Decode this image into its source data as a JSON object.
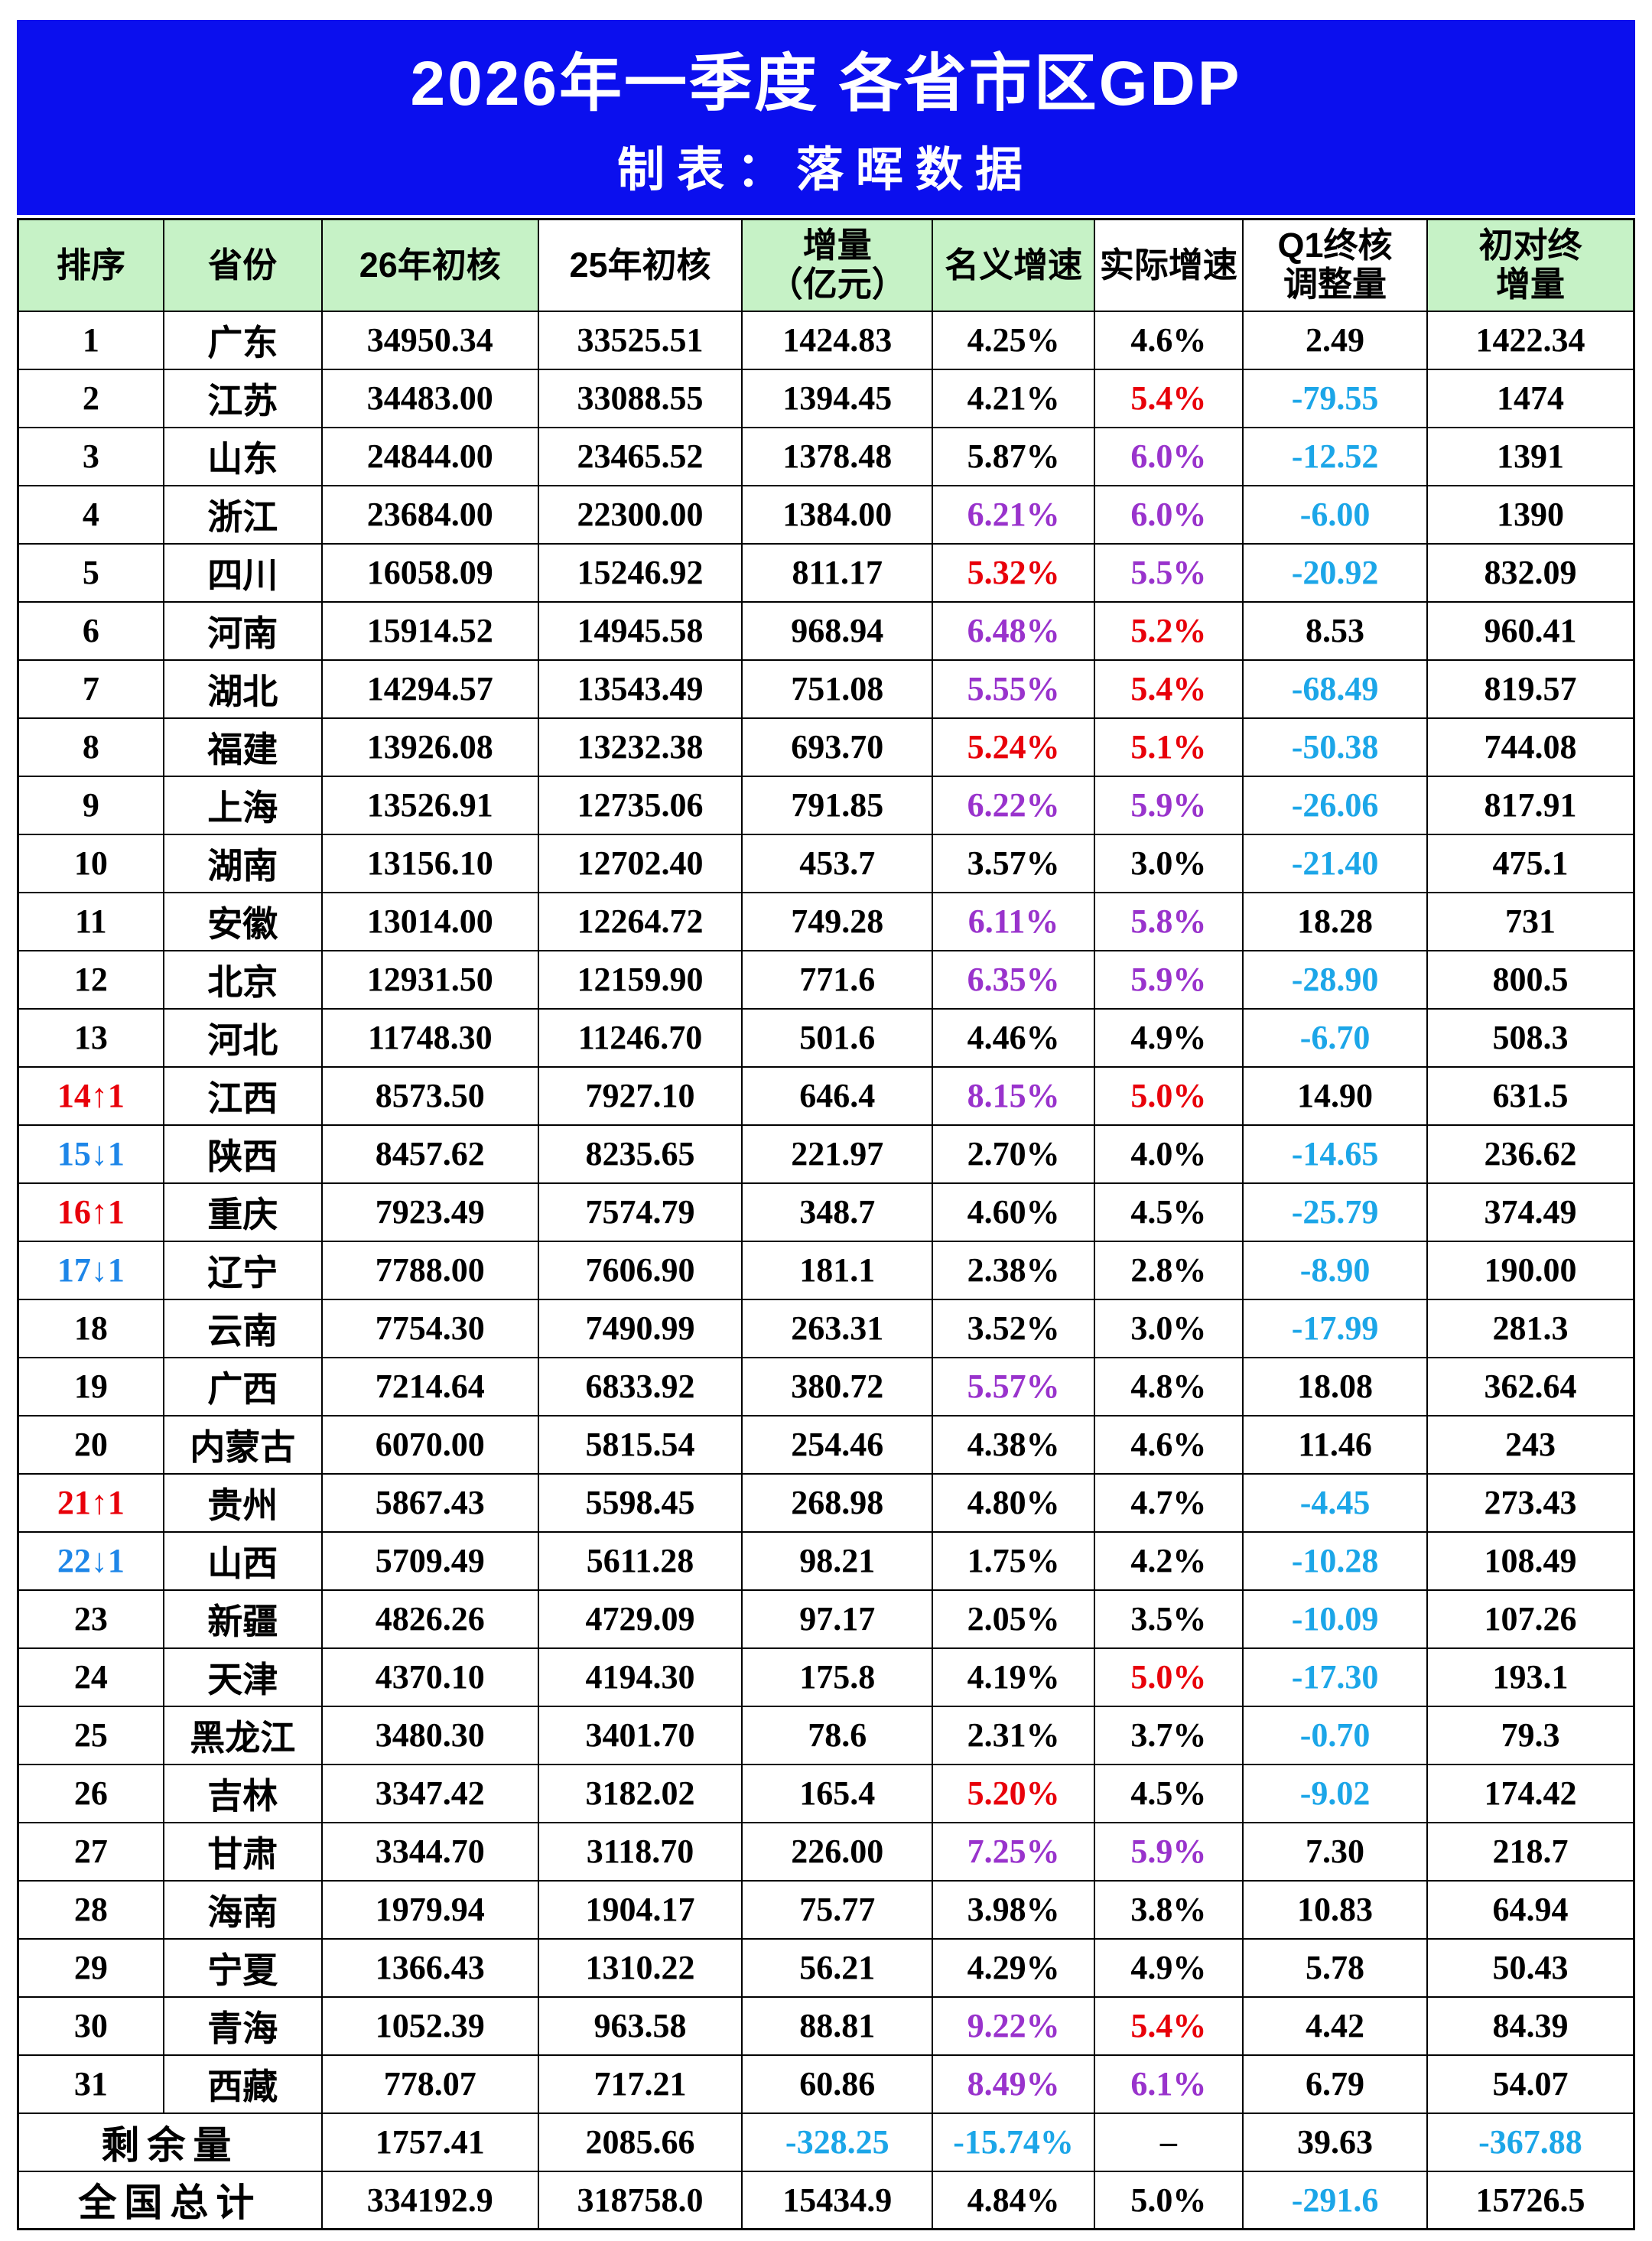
{
  "title": "2026年一季度 各省市区GDP",
  "subtitle": "制表：落晖数据",
  "colors": {
    "title_bg": "#0b0fee",
    "header_green": "#c6f2c6",
    "red": "#e8000a",
    "purple": "#9933cc",
    "cyan": "#1ca6e8",
    "blue": "#1e86e8"
  },
  "chart_data": {
    "type": "table",
    "columns": [
      {
        "label": "排序",
        "bg": "g"
      },
      {
        "label": "省份",
        "bg": "g"
      },
      {
        "label": "26年初核",
        "bg": "g"
      },
      {
        "label": "25年初核",
        "bg": "w"
      },
      {
        "label": "增量\n（亿元）",
        "bg": "g"
      },
      {
        "label": "名义增速",
        "bg": "g"
      },
      {
        "label": "实际增速",
        "bg": "w"
      },
      {
        "label": "Q1终核\n调整量",
        "bg": "w"
      },
      {
        "label": "初对终\n增量",
        "bg": "g"
      }
    ],
    "rows": [
      {
        "rank": "1",
        "rank_c": "",
        "province": "广东",
        "vals": [
          [
            "34950.34",
            ""
          ],
          [
            "33525.51",
            ""
          ],
          [
            "1424.83",
            ""
          ],
          [
            "4.25%",
            ""
          ],
          [
            "4.6%",
            ""
          ],
          [
            "2.49",
            ""
          ],
          [
            "1422.34",
            ""
          ]
        ]
      },
      {
        "rank": "2",
        "rank_c": "",
        "province": "江苏",
        "vals": [
          [
            "34483.00",
            ""
          ],
          [
            "33088.55",
            ""
          ],
          [
            "1394.45",
            ""
          ],
          [
            "4.21%",
            ""
          ],
          [
            "5.4%",
            "r"
          ],
          [
            "-79.55",
            "c"
          ],
          [
            "1474",
            ""
          ]
        ]
      },
      {
        "rank": "3",
        "rank_c": "",
        "province": "山东",
        "vals": [
          [
            "24844.00",
            ""
          ],
          [
            "23465.52",
            ""
          ],
          [
            "1378.48",
            ""
          ],
          [
            "5.87%",
            ""
          ],
          [
            "6.0%",
            "p"
          ],
          [
            "-12.52",
            "c"
          ],
          [
            "1391",
            ""
          ]
        ]
      },
      {
        "rank": "4",
        "rank_c": "",
        "province": "浙江",
        "vals": [
          [
            "23684.00",
            ""
          ],
          [
            "22300.00",
            ""
          ],
          [
            "1384.00",
            ""
          ],
          [
            "6.21%",
            "p"
          ],
          [
            "6.0%",
            "p"
          ],
          [
            "-6.00",
            "c"
          ],
          [
            "1390",
            ""
          ]
        ]
      },
      {
        "rank": "5",
        "rank_c": "",
        "province": "四川",
        "vals": [
          [
            "16058.09",
            ""
          ],
          [
            "15246.92",
            ""
          ],
          [
            "811.17",
            ""
          ],
          [
            "5.32%",
            "r"
          ],
          [
            "5.5%",
            "p"
          ],
          [
            "-20.92",
            "c"
          ],
          [
            "832.09",
            ""
          ]
        ]
      },
      {
        "rank": "6",
        "rank_c": "",
        "province": "河南",
        "vals": [
          [
            "15914.52",
            ""
          ],
          [
            "14945.58",
            ""
          ],
          [
            "968.94",
            ""
          ],
          [
            "6.48%",
            "p"
          ],
          [
            "5.2%",
            "r"
          ],
          [
            "8.53",
            ""
          ],
          [
            "960.41",
            ""
          ]
        ]
      },
      {
        "rank": "7",
        "rank_c": "",
        "province": "湖北",
        "vals": [
          [
            "14294.57",
            ""
          ],
          [
            "13543.49",
            ""
          ],
          [
            "751.08",
            ""
          ],
          [
            "5.55%",
            "p"
          ],
          [
            "5.4%",
            "r"
          ],
          [
            "-68.49",
            "c"
          ],
          [
            "819.57",
            ""
          ]
        ]
      },
      {
        "rank": "8",
        "rank_c": "",
        "province": "福建",
        "vals": [
          [
            "13926.08",
            ""
          ],
          [
            "13232.38",
            ""
          ],
          [
            "693.70",
            ""
          ],
          [
            "5.24%",
            "r"
          ],
          [
            "5.1%",
            "r"
          ],
          [
            "-50.38",
            "c"
          ],
          [
            "744.08",
            ""
          ]
        ]
      },
      {
        "rank": "9",
        "rank_c": "",
        "province": "上海",
        "vals": [
          [
            "13526.91",
            ""
          ],
          [
            "12735.06",
            ""
          ],
          [
            "791.85",
            ""
          ],
          [
            "6.22%",
            "p"
          ],
          [
            "5.9%",
            "p"
          ],
          [
            "-26.06",
            "c"
          ],
          [
            "817.91",
            ""
          ]
        ]
      },
      {
        "rank": "10",
        "rank_c": "",
        "province": "湖南",
        "vals": [
          [
            "13156.10",
            ""
          ],
          [
            "12702.40",
            ""
          ],
          [
            "453.7",
            ""
          ],
          [
            "3.57%",
            ""
          ],
          [
            "3.0%",
            ""
          ],
          [
            "-21.40",
            "c"
          ],
          [
            "475.1",
            ""
          ]
        ]
      },
      {
        "rank": "11",
        "rank_c": "",
        "province": "安徽",
        "vals": [
          [
            "13014.00",
            ""
          ],
          [
            "12264.72",
            ""
          ],
          [
            "749.28",
            ""
          ],
          [
            "6.11%",
            "p"
          ],
          [
            "5.8%",
            "p"
          ],
          [
            "18.28",
            ""
          ],
          [
            "731",
            ""
          ]
        ]
      },
      {
        "rank": "12",
        "rank_c": "",
        "province": "北京",
        "vals": [
          [
            "12931.50",
            ""
          ],
          [
            "12159.90",
            ""
          ],
          [
            "771.6",
            ""
          ],
          [
            "6.35%",
            "p"
          ],
          [
            "5.9%",
            "p"
          ],
          [
            "-28.90",
            "c"
          ],
          [
            "800.5",
            ""
          ]
        ]
      },
      {
        "rank": "13",
        "rank_c": "",
        "province": "河北",
        "vals": [
          [
            "11748.30",
            ""
          ],
          [
            "11246.70",
            ""
          ],
          [
            "501.6",
            ""
          ],
          [
            "4.46%",
            ""
          ],
          [
            "4.9%",
            ""
          ],
          [
            "-6.70",
            "c"
          ],
          [
            "508.3",
            ""
          ]
        ]
      },
      {
        "rank": "14↑1",
        "rank_c": "r",
        "province": "江西",
        "vals": [
          [
            "8573.50",
            ""
          ],
          [
            "7927.10",
            ""
          ],
          [
            "646.4",
            ""
          ],
          [
            "8.15%",
            "p"
          ],
          [
            "5.0%",
            "r"
          ],
          [
            "14.90",
            ""
          ],
          [
            "631.5",
            ""
          ]
        ]
      },
      {
        "rank": "15↓1",
        "rank_c": "b",
        "province": "陕西",
        "vals": [
          [
            "8457.62",
            ""
          ],
          [
            "8235.65",
            ""
          ],
          [
            "221.97",
            ""
          ],
          [
            "2.70%",
            ""
          ],
          [
            "4.0%",
            ""
          ],
          [
            "-14.65",
            "c"
          ],
          [
            "236.62",
            ""
          ]
        ]
      },
      {
        "rank": "16↑1",
        "rank_c": "r",
        "province": "重庆",
        "vals": [
          [
            "7923.49",
            ""
          ],
          [
            "7574.79",
            ""
          ],
          [
            "348.7",
            ""
          ],
          [
            "4.60%",
            ""
          ],
          [
            "4.5%",
            ""
          ],
          [
            "-25.79",
            "c"
          ],
          [
            "374.49",
            ""
          ]
        ]
      },
      {
        "rank": "17↓1",
        "rank_c": "b",
        "province": "辽宁",
        "vals": [
          [
            "7788.00",
            ""
          ],
          [
            "7606.90",
            ""
          ],
          [
            "181.1",
            ""
          ],
          [
            "2.38%",
            ""
          ],
          [
            "2.8%",
            ""
          ],
          [
            "-8.90",
            "c"
          ],
          [
            "190.00",
            ""
          ]
        ]
      },
      {
        "rank": "18",
        "rank_c": "",
        "province": "云南",
        "vals": [
          [
            "7754.30",
            ""
          ],
          [
            "7490.99",
            ""
          ],
          [
            "263.31",
            ""
          ],
          [
            "3.52%",
            ""
          ],
          [
            "3.0%",
            ""
          ],
          [
            "-17.99",
            "c"
          ],
          [
            "281.3",
            ""
          ]
        ]
      },
      {
        "rank": "19",
        "rank_c": "",
        "province": "广西",
        "vals": [
          [
            "7214.64",
            ""
          ],
          [
            "6833.92",
            ""
          ],
          [
            "380.72",
            ""
          ],
          [
            "5.57%",
            "p"
          ],
          [
            "4.8%",
            ""
          ],
          [
            "18.08",
            ""
          ],
          [
            "362.64",
            ""
          ]
        ]
      },
      {
        "rank": "20",
        "rank_c": "",
        "province": "内蒙古",
        "vals": [
          [
            "6070.00",
            ""
          ],
          [
            "5815.54",
            ""
          ],
          [
            "254.46",
            ""
          ],
          [
            "4.38%",
            ""
          ],
          [
            "4.6%",
            ""
          ],
          [
            "11.46",
            ""
          ],
          [
            "243",
            ""
          ]
        ]
      },
      {
        "rank": "21↑1",
        "rank_c": "r",
        "province": "贵州",
        "vals": [
          [
            "5867.43",
            ""
          ],
          [
            "5598.45",
            ""
          ],
          [
            "268.98",
            ""
          ],
          [
            "4.80%",
            ""
          ],
          [
            "4.7%",
            ""
          ],
          [
            "-4.45",
            "c"
          ],
          [
            "273.43",
            ""
          ]
        ]
      },
      {
        "rank": "22↓1",
        "rank_c": "b",
        "province": "山西",
        "vals": [
          [
            "5709.49",
            ""
          ],
          [
            "5611.28",
            ""
          ],
          [
            "98.21",
            ""
          ],
          [
            "1.75%",
            ""
          ],
          [
            "4.2%",
            ""
          ],
          [
            "-10.28",
            "c"
          ],
          [
            "108.49",
            ""
          ]
        ]
      },
      {
        "rank": "23",
        "rank_c": "",
        "province": "新疆",
        "vals": [
          [
            "4826.26",
            ""
          ],
          [
            "4729.09",
            ""
          ],
          [
            "97.17",
            ""
          ],
          [
            "2.05%",
            ""
          ],
          [
            "3.5%",
            ""
          ],
          [
            "-10.09",
            "c"
          ],
          [
            "107.26",
            ""
          ]
        ]
      },
      {
        "rank": "24",
        "rank_c": "",
        "province": "天津",
        "vals": [
          [
            "4370.10",
            ""
          ],
          [
            "4194.30",
            ""
          ],
          [
            "175.8",
            ""
          ],
          [
            "4.19%",
            ""
          ],
          [
            "5.0%",
            "r"
          ],
          [
            "-17.30",
            "c"
          ],
          [
            "193.1",
            ""
          ]
        ]
      },
      {
        "rank": "25",
        "rank_c": "",
        "province": "黑龙江",
        "vals": [
          [
            "3480.30",
            ""
          ],
          [
            "3401.70",
            ""
          ],
          [
            "78.6",
            ""
          ],
          [
            "2.31%",
            ""
          ],
          [
            "3.7%",
            ""
          ],
          [
            "-0.70",
            "c"
          ],
          [
            "79.3",
            ""
          ]
        ]
      },
      {
        "rank": "26",
        "rank_c": "",
        "province": "吉林",
        "vals": [
          [
            "3347.42",
            ""
          ],
          [
            "3182.02",
            ""
          ],
          [
            "165.4",
            ""
          ],
          [
            "5.20%",
            "r"
          ],
          [
            "4.5%",
            ""
          ],
          [
            "-9.02",
            "c"
          ],
          [
            "174.42",
            ""
          ]
        ]
      },
      {
        "rank": "27",
        "rank_c": "",
        "province": "甘肃",
        "vals": [
          [
            "3344.70",
            ""
          ],
          [
            "3118.70",
            ""
          ],
          [
            "226.00",
            ""
          ],
          [
            "7.25%",
            "p"
          ],
          [
            "5.9%",
            "p"
          ],
          [
            "7.30",
            ""
          ],
          [
            "218.7",
            ""
          ]
        ]
      },
      {
        "rank": "28",
        "rank_c": "",
        "province": "海南",
        "vals": [
          [
            "1979.94",
            ""
          ],
          [
            "1904.17",
            ""
          ],
          [
            "75.77",
            ""
          ],
          [
            "3.98%",
            ""
          ],
          [
            "3.8%",
            ""
          ],
          [
            "10.83",
            ""
          ],
          [
            "64.94",
            ""
          ]
        ]
      },
      {
        "rank": "29",
        "rank_c": "",
        "province": "宁夏",
        "vals": [
          [
            "1366.43",
            ""
          ],
          [
            "1310.22",
            ""
          ],
          [
            "56.21",
            ""
          ],
          [
            "4.29%",
            ""
          ],
          [
            "4.9%",
            ""
          ],
          [
            "5.78",
            ""
          ],
          [
            "50.43",
            ""
          ]
        ]
      },
      {
        "rank": "30",
        "rank_c": "",
        "province": "青海",
        "vals": [
          [
            "1052.39",
            ""
          ],
          [
            "963.58",
            ""
          ],
          [
            "88.81",
            ""
          ],
          [
            "9.22%",
            "p"
          ],
          [
            "5.4%",
            "r"
          ],
          [
            "4.42",
            ""
          ],
          [
            "84.39",
            ""
          ]
        ]
      },
      {
        "rank": "31",
        "rank_c": "",
        "province": "西藏",
        "vals": [
          [
            "778.07",
            ""
          ],
          [
            "717.21",
            ""
          ],
          [
            "60.86",
            ""
          ],
          [
            "8.49%",
            "p"
          ],
          [
            "6.1%",
            "p"
          ],
          [
            "6.79",
            ""
          ],
          [
            "54.07",
            ""
          ]
        ]
      }
    ],
    "footer_rows": [
      {
        "label": "剩余量",
        "vals": [
          [
            "1757.41",
            ""
          ],
          [
            "2085.66",
            ""
          ],
          [
            "-328.25",
            "c"
          ],
          [
            "-15.74%",
            "c"
          ],
          [
            "–",
            ""
          ],
          [
            "39.63",
            ""
          ],
          [
            "-367.88",
            "c"
          ]
        ]
      },
      {
        "label": "全国总计",
        "vals": [
          [
            "334192.9",
            ""
          ],
          [
            "318758.0",
            ""
          ],
          [
            "15434.9",
            ""
          ],
          [
            "4.84%",
            ""
          ],
          [
            "5.0%",
            ""
          ],
          [
            "-291.6",
            "c"
          ],
          [
            "15726.5",
            ""
          ]
        ]
      }
    ]
  }
}
